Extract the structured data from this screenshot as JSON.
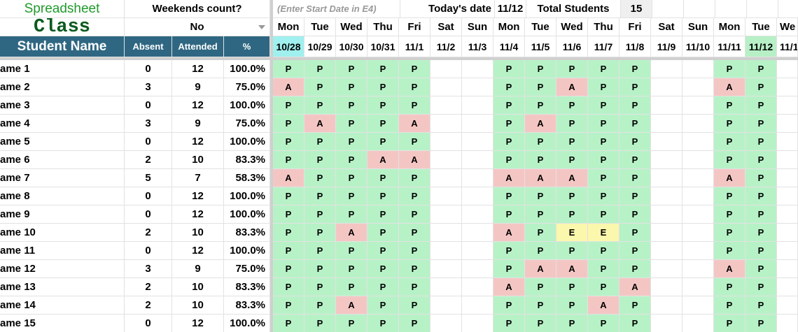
{
  "header": {
    "app_title": "Spreadsheet",
    "app_subtitle": "Class",
    "weekends_label": "Weekends count?",
    "weekends_value": "No",
    "start_date_hint": "(Enter Start Date in E4)",
    "today_label": "Today's date",
    "today_value": "11/12",
    "total_label": "Total Students",
    "total_value": 15
  },
  "columns": {
    "name": "Student Name",
    "absent": "Absent",
    "attended": "Attended",
    "percent": "%"
  },
  "days": [
    {
      "day": "Mon",
      "date": "10/28"
    },
    {
      "day": "Tue",
      "date": "10/29"
    },
    {
      "day": "Wed",
      "date": "10/30"
    },
    {
      "day": "Thu",
      "date": "10/31"
    },
    {
      "day": "Fri",
      "date": "11/1"
    },
    {
      "day": "Sat",
      "date": "11/2"
    },
    {
      "day": "Sun",
      "date": "11/3"
    },
    {
      "day": "Mon",
      "date": "11/4"
    },
    {
      "day": "Tue",
      "date": "11/5"
    },
    {
      "day": "Wed",
      "date": "11/6"
    },
    {
      "day": "Thu",
      "date": "11/7"
    },
    {
      "day": "Fri",
      "date": "11/8"
    },
    {
      "day": "Sat",
      "date": "11/9"
    },
    {
      "day": "Sun",
      "date": "11/10"
    },
    {
      "day": "Mon",
      "date": "11/11"
    },
    {
      "day": "Tue",
      "date": "11/12"
    },
    {
      "day": "We",
      "date": "11/1"
    }
  ],
  "students": [
    {
      "name": "ame 1",
      "absent": 0,
      "attended": 12,
      "percent": "100.0%",
      "marks": [
        "P",
        "P",
        "P",
        "P",
        "P",
        null,
        null,
        "P",
        "P",
        "P",
        "P",
        "P",
        null,
        null,
        "P",
        "P",
        null
      ]
    },
    {
      "name": "ame 2",
      "absent": 3,
      "attended": 9,
      "percent": "75.0%",
      "marks": [
        "A",
        "P",
        "P",
        "P",
        "P",
        null,
        null,
        "P",
        "P",
        "A",
        "P",
        "P",
        null,
        null,
        "A",
        "P",
        null
      ]
    },
    {
      "name": "ame 3",
      "absent": 0,
      "attended": 12,
      "percent": "100.0%",
      "marks": [
        "P",
        "P",
        "P",
        "P",
        "P",
        null,
        null,
        "P",
        "P",
        "P",
        "P",
        "P",
        null,
        null,
        "P",
        "P",
        null
      ]
    },
    {
      "name": "ame 4",
      "absent": 3,
      "attended": 9,
      "percent": "75.0%",
      "marks": [
        "P",
        "A",
        "P",
        "P",
        "A",
        null,
        null,
        "P",
        "A",
        "P",
        "P",
        "P",
        null,
        null,
        "P",
        "P",
        null
      ]
    },
    {
      "name": "ame 5",
      "absent": 0,
      "attended": 12,
      "percent": "100.0%",
      "marks": [
        "P",
        "P",
        "P",
        "P",
        "P",
        null,
        null,
        "P",
        "P",
        "P",
        "P",
        "P",
        null,
        null,
        "P",
        "P",
        null
      ]
    },
    {
      "name": "ame 6",
      "absent": 2,
      "attended": 10,
      "percent": "83.3%",
      "marks": [
        "P",
        "P",
        "P",
        "A",
        "A",
        null,
        null,
        "P",
        "P",
        "P",
        "P",
        "P",
        null,
        null,
        "P",
        "P",
        null
      ]
    },
    {
      "name": "ame 7",
      "absent": 5,
      "attended": 7,
      "percent": "58.3%",
      "marks": [
        "A",
        "P",
        "P",
        "P",
        "P",
        null,
        null,
        "A",
        "A",
        "A",
        "P",
        "P",
        null,
        null,
        "A",
        "P",
        null
      ]
    },
    {
      "name": "ame 8",
      "absent": 0,
      "attended": 12,
      "percent": "100.0%",
      "marks": [
        "P",
        "P",
        "P",
        "P",
        "P",
        null,
        null,
        "P",
        "P",
        "P",
        "P",
        "P",
        null,
        null,
        "P",
        "P",
        null
      ]
    },
    {
      "name": "ame 9",
      "absent": 0,
      "attended": 12,
      "percent": "100.0%",
      "marks": [
        "P",
        "P",
        "P",
        "P",
        "P",
        null,
        null,
        "P",
        "P",
        "P",
        "P",
        "P",
        null,
        null,
        "P",
        "P",
        null
      ]
    },
    {
      "name": "ame 10",
      "absent": 2,
      "attended": 10,
      "percent": "83.3%",
      "marks": [
        "P",
        "P",
        "A",
        "P",
        "P",
        null,
        null,
        "A",
        "P",
        "E",
        "E",
        "P",
        null,
        null,
        "P",
        "P",
        null
      ]
    },
    {
      "name": "ame 11",
      "absent": 0,
      "attended": 12,
      "percent": "100.0%",
      "marks": [
        "P",
        "P",
        "P",
        "P",
        "P",
        null,
        null,
        "P",
        "P",
        "P",
        "P",
        "P",
        null,
        null,
        "P",
        "P",
        null
      ]
    },
    {
      "name": "ame 12",
      "absent": 3,
      "attended": 9,
      "percent": "75.0%",
      "marks": [
        "P",
        "P",
        "P",
        "P",
        "P",
        null,
        null,
        "P",
        "A",
        "A",
        "P",
        "P",
        null,
        null,
        "A",
        "P",
        null
      ]
    },
    {
      "name": "ame 13",
      "absent": 2,
      "attended": 10,
      "percent": "83.3%",
      "marks": [
        "P",
        "P",
        "P",
        "P",
        "P",
        null,
        null,
        "A",
        "P",
        "P",
        "P",
        "A",
        null,
        null,
        "P",
        "P",
        null
      ]
    },
    {
      "name": "ame 14",
      "absent": 2,
      "attended": 10,
      "percent": "83.3%",
      "marks": [
        "P",
        "P",
        "A",
        "P",
        "P",
        null,
        null,
        "P",
        "P",
        "P",
        "A",
        "P",
        null,
        null,
        "P",
        "P",
        null
      ]
    },
    {
      "name": "ame 15",
      "absent": 0,
      "attended": 12,
      "percent": "100.0%",
      "marks": [
        "P",
        "P",
        "P",
        "P",
        "P",
        null,
        null,
        "P",
        "P",
        "P",
        "P",
        "P",
        null,
        null,
        "P",
        "P",
        null
      ]
    }
  ]
}
